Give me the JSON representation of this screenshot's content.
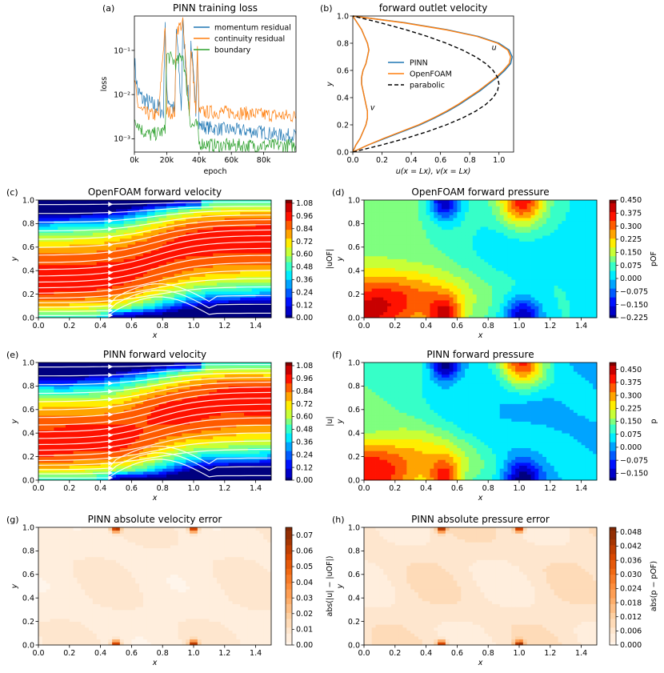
{
  "palette": {
    "blue": "#1f77b4",
    "orange": "#ff7f0e",
    "green": "#2ca02c",
    "jet": [
      "#00007f",
      "#0000ff",
      "#007fff",
      "#00ffff",
      "#7fff7f",
      "#ffff00",
      "#ff7f00",
      "#ff0000",
      "#7f0000"
    ],
    "oranges": [
      "#fff5eb",
      "#fee6ce",
      "#fdd0a2",
      "#fdae6b",
      "#fd8d3c",
      "#f16913",
      "#d94801",
      "#a63603",
      "#7f2704"
    ]
  },
  "chart_data": [
    {
      "id": "a",
      "label": "(a)",
      "type": "line",
      "title": "PINN training loss",
      "xlabel": "epoch",
      "ylabel": "loss",
      "yscale": "log",
      "xlim": [
        0,
        100000
      ],
      "ylim": [
        0.0005,
        0.6
      ],
      "xticks": [
        0,
        20000,
        40000,
        60000,
        80000
      ],
      "xticklabels": [
        "0k",
        "20k",
        "40k",
        "60k",
        "80k"
      ],
      "yticks": [
        0.001,
        0.01,
        0.1
      ],
      "yticklabels": [
        "10⁻³",
        "10⁻²",
        "10⁻¹"
      ],
      "legend": [
        "momentum residual",
        "continuity residual",
        "boundary"
      ],
      "legend_loc": "upper right",
      "series": [
        {
          "name": "momentum residual",
          "color": "blue",
          "x": [
            0,
            2000,
            5000,
            10000,
            15000,
            18000,
            19000,
            20000,
            25000,
            26000,
            29000,
            30000,
            34000,
            35000,
            38000,
            39000,
            40000,
            45000,
            50000,
            60000,
            70000,
            80000,
            90000,
            100000
          ],
          "y": [
            0.06,
            0.012,
            0.008,
            0.006,
            0.005,
            0.004,
            0.5,
            0.01,
            0.004,
            0.3,
            0.005,
            0.4,
            0.004,
            0.15,
            0.004,
            0.15,
            0.002,
            0.0018,
            0.0017,
            0.0016,
            0.0015,
            0.0014,
            0.0012,
            0.0012
          ]
        },
        {
          "name": "continuity residual",
          "color": "orange",
          "x": [
            0,
            2000,
            5000,
            10000,
            15000,
            19000,
            20000,
            25000,
            26000,
            30000,
            34000,
            35000,
            38000,
            39000,
            40000,
            60000,
            80000,
            100000
          ],
          "y": [
            0.02,
            0.006,
            0.004,
            0.0035,
            0.0035,
            0.4,
            0.004,
            0.004,
            0.3,
            0.4,
            0.004,
            0.12,
            0.004,
            0.1,
            0.004,
            0.004,
            0.0035,
            0.0032
          ]
        },
        {
          "name": "boundary",
          "color": "green",
          "x": [
            0,
            5000,
            10000,
            19000,
            20000,
            26000,
            30000,
            35000,
            39000,
            40000,
            50000,
            60000,
            80000,
            100000
          ],
          "y": [
            0.003,
            0.0015,
            0.0012,
            0.0015,
            0.08,
            0.05,
            0.08,
            0.002,
            0.002,
            0.0008,
            0.0007,
            0.0007,
            0.0007,
            0.0007
          ]
        }
      ]
    },
    {
      "id": "b",
      "label": "(b)",
      "type": "line",
      "title": "forward outlet velocity",
      "xlabel": "u(x = Lx), v(x = Lx)",
      "ylabel": "y",
      "xlim": [
        0,
        1.1
      ],
      "ylim": [
        0,
        1.0
      ],
      "xticks": [
        0,
        0.2,
        0.4,
        0.6,
        0.8,
        1.0
      ],
      "xticklabels": [
        "0.0",
        "0.2",
        "0.4",
        "0.6",
        "0.8",
        "1.0"
      ],
      "yticks": [
        0,
        0.2,
        0.4,
        0.6,
        0.8,
        1.0
      ],
      "yticklabels": [
        "0.0",
        "0.2",
        "0.4",
        "0.6",
        "0.8",
        "1.0"
      ],
      "legend": [
        "PINN",
        "OpenFOAM",
        "parabolic"
      ],
      "annotations": [
        {
          "text": "u",
          "x": 0.95,
          "y": 0.75
        },
        {
          "text": "v",
          "x": 0.12,
          "y": 0.31
        }
      ],
      "series": [
        {
          "name": "PINN u",
          "color": "blue",
          "y": [
            0,
            0.05,
            0.1,
            0.15,
            0.2,
            0.25,
            0.3,
            0.35,
            0.4,
            0.45,
            0.5,
            0.55,
            0.6,
            0.65,
            0.7,
            0.75,
            0.8,
            0.85,
            0.9,
            0.95,
            1.0
          ],
          "x": [
            0,
            0.1,
            0.22,
            0.34,
            0.46,
            0.56,
            0.65,
            0.73,
            0.8,
            0.87,
            0.93,
            0.99,
            1.04,
            1.08,
            1.09,
            1.07,
            1.0,
            0.86,
            0.64,
            0.36,
            0
          ]
        },
        {
          "name": "OpenFOAM u",
          "color": "orange",
          "y": [
            0,
            0.05,
            0.1,
            0.15,
            0.2,
            0.25,
            0.3,
            0.35,
            0.4,
            0.45,
            0.5,
            0.55,
            0.6,
            0.65,
            0.7,
            0.75,
            0.8,
            0.85,
            0.9,
            0.95,
            1.0
          ],
          "x": [
            0,
            0.1,
            0.21,
            0.33,
            0.45,
            0.55,
            0.64,
            0.72,
            0.79,
            0.86,
            0.92,
            0.98,
            1.03,
            1.07,
            1.08,
            1.06,
            0.99,
            0.85,
            0.63,
            0.35,
            0
          ]
        },
        {
          "name": "PINN v",
          "color": "blue",
          "y": [
            0,
            0.05,
            0.1,
            0.15,
            0.2,
            0.25,
            0.3,
            0.35,
            0.4,
            0.45,
            0.5,
            0.55,
            0.6,
            0.65,
            0.7,
            0.75,
            0.8,
            0.85,
            0.9,
            0.95,
            1.0
          ],
          "x": [
            0,
            0.02,
            0.05,
            0.07,
            0.09,
            0.1,
            0.1,
            0.09,
            0.08,
            0.07,
            0.06,
            0.06,
            0.07,
            0.09,
            0.1,
            0.11,
            0.1,
            0.08,
            0.06,
            0.03,
            0
          ]
        },
        {
          "name": "OpenFOAM v",
          "color": "orange",
          "y": [
            0,
            0.05,
            0.1,
            0.15,
            0.2,
            0.25,
            0.3,
            0.35,
            0.4,
            0.45,
            0.5,
            0.55,
            0.6,
            0.65,
            0.7,
            0.75,
            0.8,
            0.85,
            0.9,
            0.95,
            1.0
          ],
          "x": [
            0,
            0.02,
            0.05,
            0.07,
            0.09,
            0.1,
            0.1,
            0.09,
            0.08,
            0.07,
            0.06,
            0.06,
            0.07,
            0.09,
            0.1,
            0.11,
            0.1,
            0.08,
            0.06,
            0.03,
            0
          ]
        },
        {
          "name": "parabolic",
          "color": "black",
          "dashed": true,
          "y": [
            0,
            0.05,
            0.1,
            0.15,
            0.2,
            0.25,
            0.3,
            0.35,
            0.4,
            0.45,
            0.5,
            0.55,
            0.6,
            0.65,
            0.7,
            0.75,
            0.8,
            0.85,
            0.9,
            0.95,
            1.0
          ],
          "x": [
            0,
            0.19,
            0.36,
            0.51,
            0.64,
            0.75,
            0.84,
            0.91,
            0.96,
            0.99,
            1.0,
            0.99,
            0.96,
            0.91,
            0.84,
            0.75,
            0.64,
            0.51,
            0.36,
            0.19,
            0
          ]
        }
      ]
    },
    {
      "id": "c",
      "label": "(c)",
      "type": "heatmap",
      "title": "OpenFOAM forward velocity",
      "field": "velocity",
      "cmap": "jet",
      "streamlines": true,
      "xlabel": "x",
      "ylabel": "y",
      "xlim": [
        0,
        1.5
      ],
      "ylim": [
        0,
        1.0
      ],
      "xticklabels": [
        "0.0",
        "0.2",
        "0.4",
        "0.6",
        "0.8",
        "1.0",
        "1.2",
        "1.4"
      ],
      "yticklabels": [
        "0.0",
        "0.2",
        "0.4",
        "0.6",
        "0.8",
        "1.0"
      ],
      "colorbar_label": "|uOF|",
      "clim": [
        0,
        1.11
      ],
      "colorbar_ticks": [
        "0.00",
        "0.12",
        "0.24",
        "0.36",
        "0.48",
        "0.60",
        "0.72",
        "0.84",
        "0.96",
        "1.08"
      ]
    },
    {
      "id": "d",
      "label": "(d)",
      "type": "heatmap",
      "title": "OpenFOAM forward pressure",
      "field": "pressure",
      "cmap": "jet",
      "streamlines": false,
      "xlabel": "x",
      "ylabel": "y",
      "xlim": [
        0,
        1.5
      ],
      "ylim": [
        0,
        1.0
      ],
      "xticklabels": [
        "0.0",
        "0.2",
        "0.4",
        "0.6",
        "0.8",
        "1.0",
        "1.2",
        "1.4"
      ],
      "yticklabels": [
        "0.0",
        "0.2",
        "0.4",
        "0.6",
        "0.8",
        "1.0"
      ],
      "colorbar_label": "pOF",
      "clim": [
        -0.225,
        0.45
      ],
      "colorbar_ticks": [
        "−0.225",
        "−0.150",
        "−0.075",
        "0.000",
        "0.075",
        "0.150",
        "0.225",
        "0.300",
        "0.375",
        "0.450"
      ]
    },
    {
      "id": "e",
      "label": "(e)",
      "type": "heatmap",
      "title": "PINN forward velocity",
      "field": "velocity",
      "cmap": "jet",
      "streamlines": true,
      "xlabel": "x",
      "ylabel": "y",
      "xlim": [
        0,
        1.5
      ],
      "ylim": [
        0,
        1.0
      ],
      "xticklabels": [
        "0.0",
        "0.2",
        "0.4",
        "0.6",
        "0.8",
        "1.0",
        "1.2",
        "1.4"
      ],
      "yticklabels": [
        "0.0",
        "0.2",
        "0.4",
        "0.6",
        "0.8",
        "1.0"
      ],
      "colorbar_label": "|u|",
      "clim": [
        0,
        1.11
      ],
      "colorbar_ticks": [
        "0.00",
        "0.12",
        "0.24",
        "0.36",
        "0.48",
        "0.60",
        "0.72",
        "0.84",
        "0.96",
        "1.08"
      ]
    },
    {
      "id": "f",
      "label": "(f)",
      "type": "heatmap",
      "title": "PINN forward pressure",
      "field": "pressure",
      "cmap": "jet",
      "streamlines": false,
      "xlabel": "x",
      "ylabel": "y",
      "xlim": [
        0,
        1.5
      ],
      "ylim": [
        0,
        1.0
      ],
      "xticklabels": [
        "0.0",
        "0.2",
        "0.4",
        "0.6",
        "0.8",
        "1.0",
        "1.2",
        "1.4"
      ],
      "yticklabels": [
        "0.0",
        "0.2",
        "0.4",
        "0.6",
        "0.8",
        "1.0"
      ],
      "colorbar_label": "p",
      "clim": [
        -0.19,
        0.49
      ],
      "colorbar_ticks": [
        "−0.150",
        "−0.075",
        "0.000",
        "0.075",
        "0.150",
        "0.225",
        "0.300",
        "0.375",
        "0.450"
      ]
    },
    {
      "id": "g",
      "label": "(g)",
      "type": "heatmap",
      "title": "PINN absolute velocity error",
      "field": "err_velocity",
      "cmap": "oranges",
      "streamlines": false,
      "xlabel": "x",
      "ylabel": "y",
      "xlim": [
        0,
        1.5
      ],
      "ylim": [
        0,
        1.0
      ],
      "xticklabels": [
        "0.0",
        "0.2",
        "0.4",
        "0.6",
        "0.8",
        "1.0",
        "1.2",
        "1.4"
      ],
      "yticklabels": [
        "0.0",
        "0.2",
        "0.4",
        "0.6",
        "0.8",
        "1.0"
      ],
      "colorbar_label": "abs(|u| − |uOF|)",
      "clim": [
        0,
        0.075
      ],
      "colorbar_ticks": [
        "0.00",
        "0.01",
        "0.02",
        "0.03",
        "0.04",
        "0.05",
        "0.06",
        "0.07"
      ]
    },
    {
      "id": "h",
      "label": "(h)",
      "type": "heatmap",
      "title": "PINN absolute pressure error",
      "field": "err_pressure",
      "cmap": "oranges",
      "streamlines": false,
      "xlabel": "x",
      "ylabel": "y",
      "xlim": [
        0,
        1.5
      ],
      "ylim": [
        0,
        1.0
      ],
      "xticklabels": [
        "0.0",
        "0.2",
        "0.4",
        "0.6",
        "0.8",
        "1.0",
        "1.2",
        "1.4"
      ],
      "yticklabels": [
        "0.0",
        "0.2",
        "0.4",
        "0.6",
        "0.8",
        "1.0"
      ],
      "colorbar_label": "abs(p − pOF)",
      "clim": [
        0,
        0.05
      ],
      "colorbar_ticks": [
        "0.000",
        "0.006",
        "0.012",
        "0.018",
        "0.024",
        "0.030",
        "0.036",
        "0.042",
        "0.048"
      ]
    }
  ]
}
